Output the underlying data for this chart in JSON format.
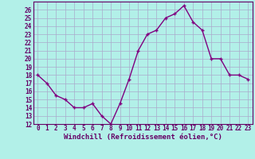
{
  "xlabel": "Windchill (Refroidissement éolien,°C)",
  "x": [
    0,
    1,
    2,
    3,
    4,
    5,
    6,
    7,
    8,
    9,
    10,
    11,
    12,
    13,
    14,
    15,
    16,
    17,
    18,
    19,
    20,
    21,
    22,
    23
  ],
  "y": [
    18,
    17,
    15.5,
    15,
    14,
    14,
    14.5,
    13,
    12,
    14.5,
    17.5,
    21,
    23,
    23.5,
    25,
    25.5,
    26.5,
    24.5,
    23.5,
    20,
    20,
    18,
    18,
    17.5
  ],
  "line_color": "#800080",
  "marker": "+",
  "marker_size": 3,
  "marker_linewidth": 1.0,
  "bg_color": "#b2f0e8",
  "grid_color": "#aaaacc",
  "ylim": [
    12,
    27
  ],
  "xlim": [
    -0.5,
    23.5
  ],
  "yticks": [
    12,
    13,
    14,
    15,
    16,
    17,
    18,
    19,
    20,
    21,
    22,
    23,
    24,
    25,
    26
  ],
  "xticks": [
    0,
    1,
    2,
    3,
    4,
    5,
    6,
    7,
    8,
    9,
    10,
    11,
    12,
    13,
    14,
    15,
    16,
    17,
    18,
    19,
    20,
    21,
    22,
    23
  ],
  "tick_fontsize": 5.5,
  "xlabel_fontsize": 6.5,
  "tick_color": "#660066",
  "line_width": 1.0
}
